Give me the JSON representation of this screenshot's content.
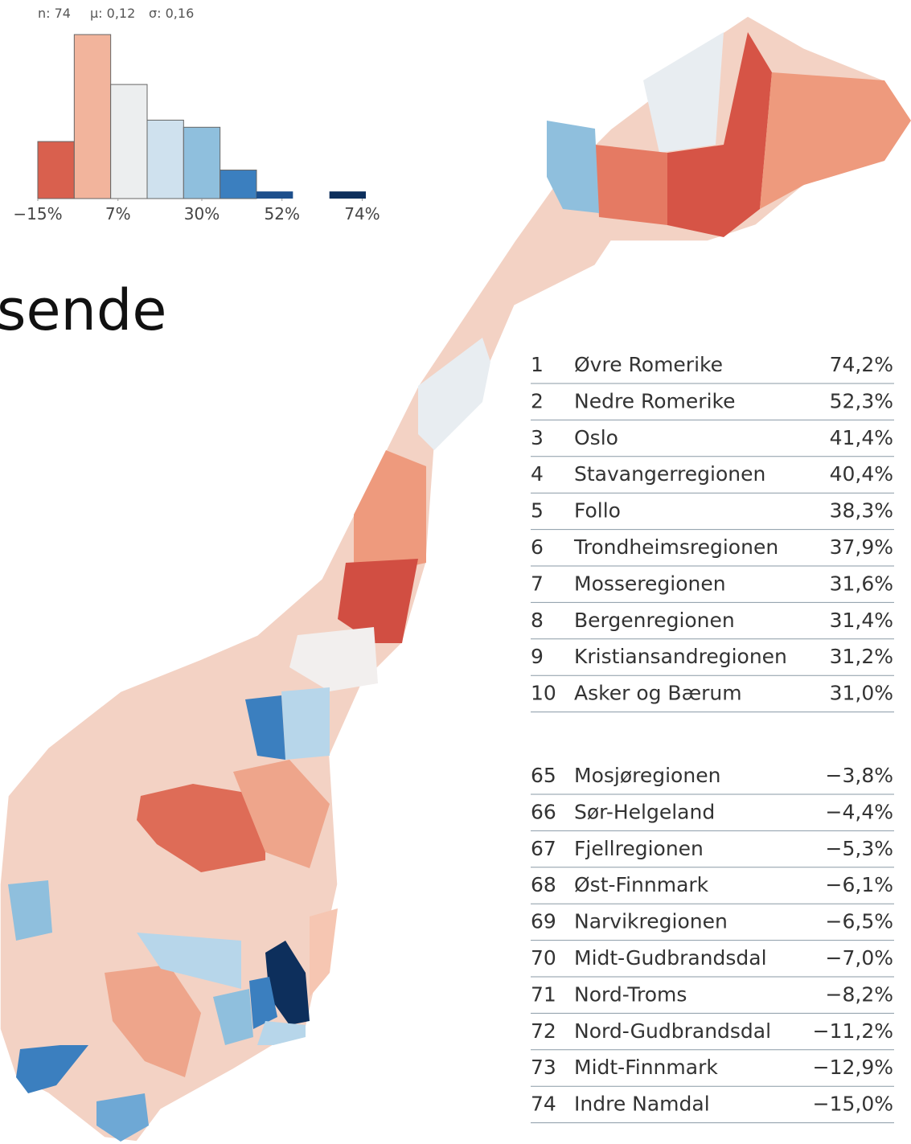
{
  "stats": [
    "n: 74",
    "μ: 0,12",
    "σ: 0,16"
  ],
  "title": "sende",
  "chart_data": {
    "type": "histogram",
    "bins": [
      -15,
      -5,
      5,
      15,
      25,
      35,
      45,
      55,
      65,
      75
    ],
    "values": [
      8,
      23,
      16,
      11,
      10,
      4,
      1,
      0,
      1
    ],
    "colors": [
      "#d9604e",
      "#f2b49c",
      "#eceeef",
      "#cfe1ee",
      "#8fbfdd",
      "#3b7fbf",
      "#1d4f8c",
      "#16406f",
      "#0d2f5c"
    ],
    "xlim": [
      -15,
      75
    ],
    "xticks": [
      {
        "value": -15,
        "label": "−15%"
      },
      {
        "value": 7,
        "label": "7%"
      },
      {
        "value": 30,
        "label": "30%"
      },
      {
        "value": 52,
        "label": "52%"
      },
      {
        "value": 74,
        "label": "74%"
      }
    ]
  },
  "ranking": {
    "top": [
      [
        "1",
        "Øvre Romerike",
        "74,2%"
      ],
      [
        "2",
        "Nedre Romerike",
        "52,3%"
      ],
      [
        "3",
        "Oslo",
        "41,4%"
      ],
      [
        "4",
        "Stavangerregionen",
        "40,4%"
      ],
      [
        "5",
        "Follo",
        "38,3%"
      ],
      [
        "6",
        "Trondheimsregionen",
        "37,9%"
      ],
      [
        "7",
        "Mosseregionen",
        "31,6%"
      ],
      [
        "8",
        "Bergenregionen",
        "31,4%"
      ],
      [
        "9",
        "Kristiansandregionen",
        "31,2%"
      ],
      [
        "10",
        "Asker og Bærum",
        "31,0%"
      ]
    ],
    "bottom": [
      [
        "65",
        "Mosjøregionen",
        "−3,8%"
      ],
      [
        "66",
        "Sør-Helgeland",
        "−4,4%"
      ],
      [
        "67",
        "Fjellregionen",
        "−5,3%"
      ],
      [
        "68",
        "Øst-Finnmark",
        "−6,1%"
      ],
      [
        "69",
        "Narvikregionen",
        "−6,5%"
      ],
      [
        "70",
        "Midt-Gudbrandsdal",
        "−7,0%"
      ],
      [
        "71",
        "Nord-Troms",
        "−8,2%"
      ],
      [
        "72",
        "Nord-Gudbrandsdal",
        "−11,2%"
      ],
      [
        "73",
        "Midt-Finnmark",
        "−12,9%"
      ],
      [
        "74",
        "Indre Namdal",
        "−15,0%"
      ]
    ]
  }
}
